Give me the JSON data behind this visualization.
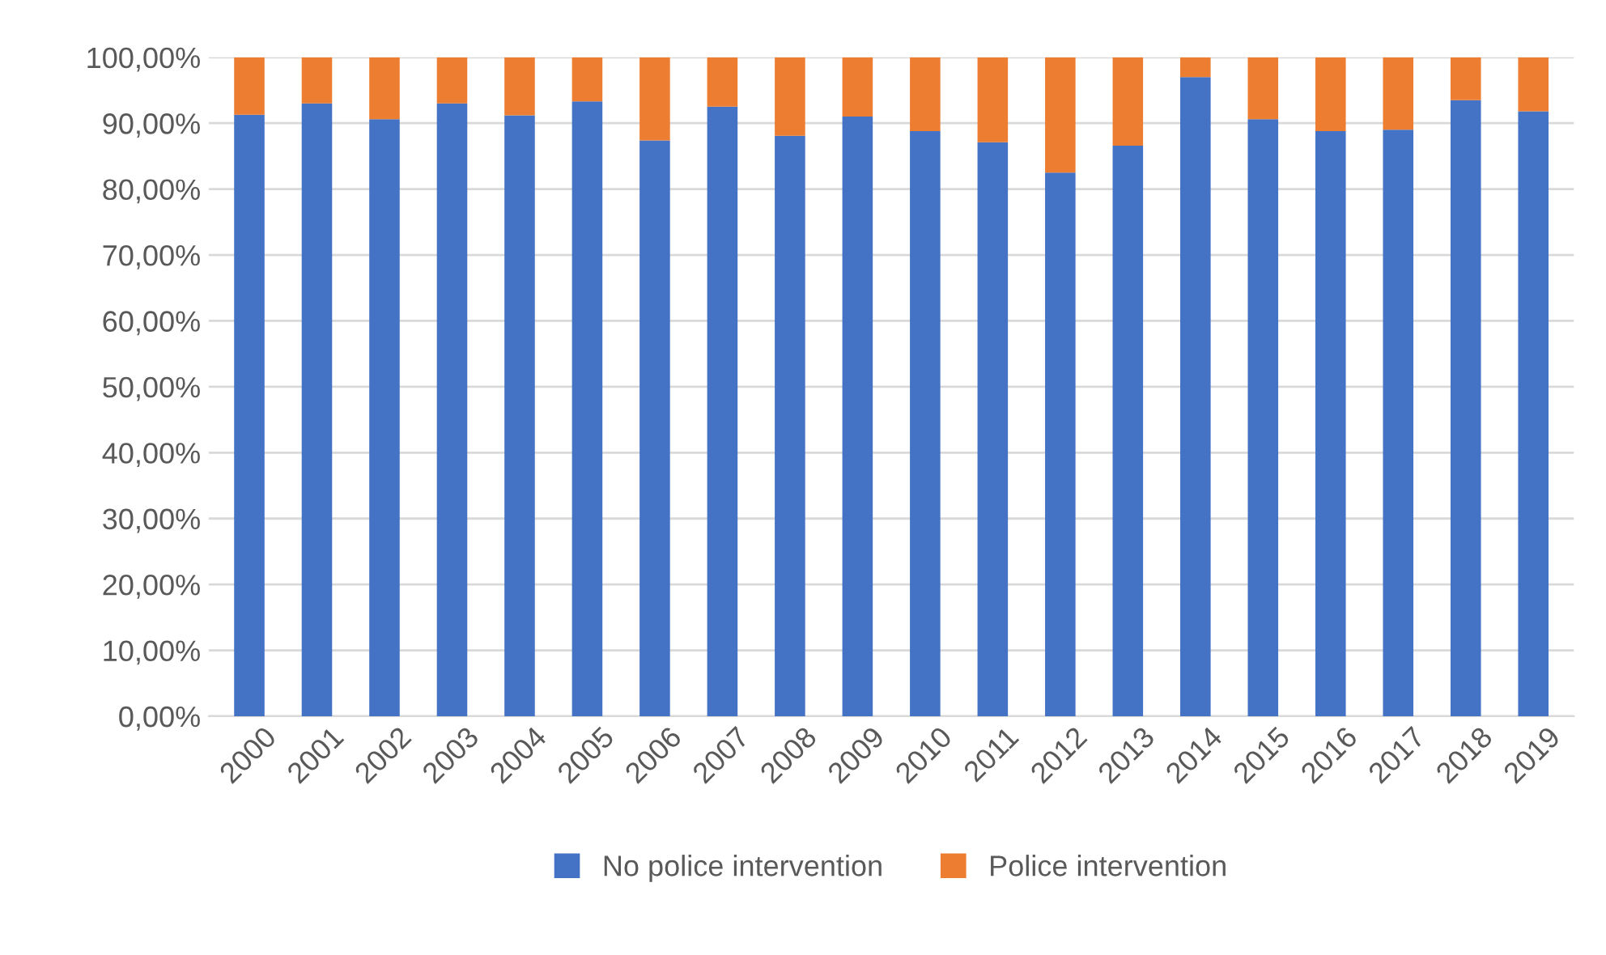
{
  "chart_data": {
    "type": "bar",
    "stacked": true,
    "categories": [
      "2000",
      "2001",
      "2002",
      "2003",
      "2004",
      "2005",
      "2006",
      "2007",
      "2008",
      "2009",
      "2010",
      "2011",
      "2012",
      "2013",
      "2014",
      "2015",
      "2016",
      "2017",
      "2018",
      "2019"
    ],
    "series": [
      {
        "name": "No police intervention",
        "color": "#4472c4",
        "values": [
          91.3,
          93.0,
          90.6,
          93.0,
          91.2,
          93.3,
          87.4,
          92.5,
          88.1,
          91.0,
          88.8,
          87.1,
          82.5,
          86.6,
          97.0,
          90.6,
          88.8,
          89.0,
          93.5,
          91.8
        ]
      },
      {
        "name": "Police intervention",
        "color": "#ed7d31",
        "values": [
          8.7,
          7.0,
          9.4,
          7.0,
          8.8,
          6.7,
          12.6,
          7.5,
          11.9,
          9.0,
          11.2,
          12.9,
          17.5,
          13.4,
          3.0,
          9.4,
          11.2,
          11.0,
          6.5,
          8.2
        ]
      }
    ],
    "ylim": [
      0,
      100
    ],
    "yticks": [
      {
        "value": 0,
        "label": "0,00%"
      },
      {
        "value": 10,
        "label": "10,00%"
      },
      {
        "value": 20,
        "label": "20,00%"
      },
      {
        "value": 30,
        "label": "30,00%"
      },
      {
        "value": 40,
        "label": "40,00%"
      },
      {
        "value": 50,
        "label": "50,00%"
      },
      {
        "value": 60,
        "label": "60,00%"
      },
      {
        "value": 70,
        "label": "70,00%"
      },
      {
        "value": 80,
        "label": "80,00%"
      },
      {
        "value": 90,
        "label": "90,00%"
      },
      {
        "value": 100,
        "label": "100,00%"
      }
    ],
    "grid": "y",
    "legend": "bottom"
  }
}
